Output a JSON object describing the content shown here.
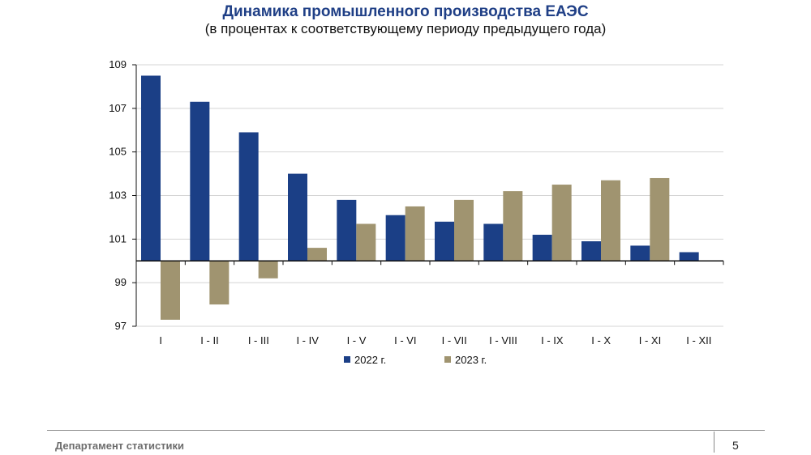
{
  "chart_data": {
    "type": "bar",
    "title": "Динамика промышленного производства ЕАЭС",
    "subtitle": "(в процентах к соответствующему периоду предыдущего года)",
    "categories": [
      "I",
      "I - II",
      "I - III",
      "I - IV",
      "I - V",
      "I - VI",
      "I - VII",
      "I - VIII",
      "I - IX",
      "I - X",
      "I - XI",
      "I - XII"
    ],
    "series": [
      {
        "name": "2022 г.",
        "color": "#1b3f86",
        "values": [
          108.5,
          107.3,
          105.9,
          104.0,
          102.8,
          102.1,
          101.8,
          101.7,
          101.2,
          100.9,
          100.7,
          100.4
        ]
      },
      {
        "name": "2023 г.",
        "color": "#a09470",
        "values": [
          97.3,
          98.0,
          99.2,
          100.6,
          101.7,
          102.5,
          102.8,
          103.2,
          103.5,
          103.7,
          103.8,
          null
        ]
      }
    ],
    "baseline": 100,
    "ylim": [
      97,
      109
    ],
    "yticks": [
      97,
      99,
      101,
      103,
      105,
      107,
      109
    ],
    "grid": true,
    "legend": "bottom"
  },
  "footer": {
    "department": "Департамент статистики",
    "page_number": "5"
  }
}
